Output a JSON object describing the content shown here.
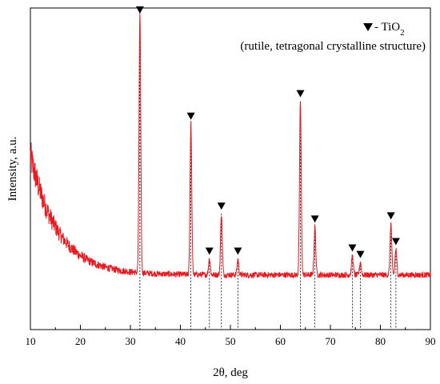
{
  "chart_data": {
    "type": "line",
    "xlabel": "2θ, deg",
    "ylabel": "Intensity, a.u.",
    "xlim": [
      10,
      90
    ],
    "ylim": [
      0,
      100
    ],
    "xticks": [
      10,
      20,
      30,
      40,
      50,
      60,
      70,
      80,
      90
    ],
    "grid": false,
    "legend": {
      "placement": "top-right",
      "marker_label": " - TiO",
      "subscript": "2",
      "description": "(rutile, tetragonal crystalline structure)"
    },
    "background": {
      "baseline": 17,
      "start": 54,
      "decay_deg": 5.5
    },
    "peaks": [
      {
        "x": 31.9,
        "y": 97
      },
      {
        "x": 42.1,
        "y": 64
      },
      {
        "x": 45.8,
        "y": 22
      },
      {
        "x": 48.2,
        "y": 36
      },
      {
        "x": 51.5,
        "y": 22
      },
      {
        "x": 64.0,
        "y": 71
      },
      {
        "x": 66.9,
        "y": 32
      },
      {
        "x": 74.4,
        "y": 23
      },
      {
        "x": 76.0,
        "y": 21
      },
      {
        "x": 82.1,
        "y": 33
      },
      {
        "x": 83.1,
        "y": 25
      }
    ],
    "series_color": "#e8191f"
  }
}
